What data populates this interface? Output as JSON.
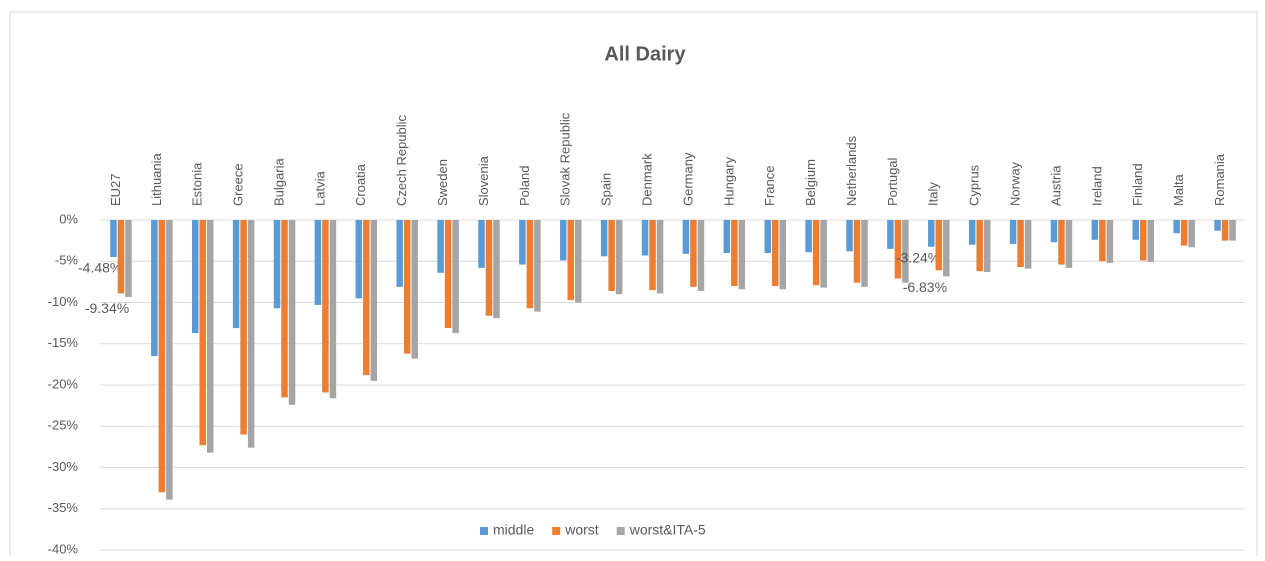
{
  "chart_data": {
    "type": "bar",
    "title": "All Dairy",
    "categories": [
      "EU27",
      "Lithuania",
      "Estonia",
      "Greece",
      "Bulgaria",
      "Latvia",
      "Croatia",
      "Czech Republic",
      "Sweden",
      "Slovenia",
      "Poland",
      "Slovak Republic",
      "Spain",
      "Denmark",
      "Germany",
      "Hungary",
      "France",
      "Belgium",
      "Netherlands",
      "Portugal",
      "Italy",
      "Cyprus",
      "Norway",
      "Austria",
      "Ireland",
      "Finland",
      "Malta",
      "Romania"
    ],
    "series": [
      {
        "name": "middle",
        "color": "#5b9bd5",
        "values": [
          -4.48,
          -16.5,
          -13.7,
          -13.1,
          -10.7,
          -10.3,
          -9.5,
          -8.1,
          -6.4,
          -5.8,
          -5.4,
          -4.9,
          -4.4,
          -4.3,
          -4.1,
          -4.0,
          -4.0,
          -3.9,
          -3.8,
          -3.5,
          -3.24,
          -3.0,
          -2.9,
          -2.7,
          -2.4,
          -2.4,
          -1.6,
          -1.3
        ],
        "value_labels": [
          "-4.48%",
          null,
          null,
          null,
          null,
          null,
          null,
          null,
          null,
          null,
          null,
          null,
          null,
          null,
          null,
          null,
          null,
          null,
          null,
          null,
          "-3.24%",
          null,
          null,
          null,
          null,
          null,
          null,
          null
        ]
      },
      {
        "name": "worst",
        "color": "#ed7d31",
        "values": [
          -8.9,
          -33.0,
          -27.3,
          -26.0,
          -21.5,
          -20.9,
          -18.8,
          -16.2,
          -13.1,
          -11.6,
          -10.7,
          -9.7,
          -8.6,
          -8.5,
          -8.1,
          -8.0,
          -8.0,
          -7.9,
          -7.6,
          -7.1,
          -6.1,
          -6.2,
          -5.7,
          -5.4,
          -5.0,
          -4.9,
          -3.1,
          -2.5
        ]
      },
      {
        "name": "worst&ITA-5",
        "color": "#a5a5a5",
        "values": [
          -9.34,
          -33.9,
          -28.2,
          -27.6,
          -22.4,
          -21.6,
          -19.5,
          -16.8,
          -13.7,
          -11.9,
          -11.1,
          -10.0,
          -9.0,
          -8.9,
          -8.6,
          -8.4,
          -8.4,
          -8.2,
          -8.1,
          -7.6,
          -6.83,
          -6.3,
          -5.9,
          -5.8,
          -5.2,
          -5.1,
          -3.3,
          -2.5
        ],
        "value_labels": [
          "-9.34%",
          null,
          null,
          null,
          null,
          null,
          null,
          null,
          null,
          null,
          null,
          null,
          null,
          null,
          null,
          null,
          null,
          null,
          null,
          null,
          "-6.83%",
          null,
          null,
          null,
          null,
          null,
          null,
          null
        ]
      }
    ],
    "ylim": [
      -40,
      0
    ],
    "yticks": [
      {
        "value": 0,
        "label": "0%"
      },
      {
        "value": -5,
        "label": "-5%"
      },
      {
        "value": -10,
        "label": "-10%"
      },
      {
        "value": -15,
        "label": "-15%"
      },
      {
        "value": -20,
        "label": "-20%"
      },
      {
        "value": -25,
        "label": "-25%"
      },
      {
        "value": -30,
        "label": "-30%"
      },
      {
        "value": -35,
        "label": "-35%"
      },
      {
        "value": -40,
        "label": "-40%"
      }
    ],
    "grid": true,
    "legend": "bottom"
  }
}
